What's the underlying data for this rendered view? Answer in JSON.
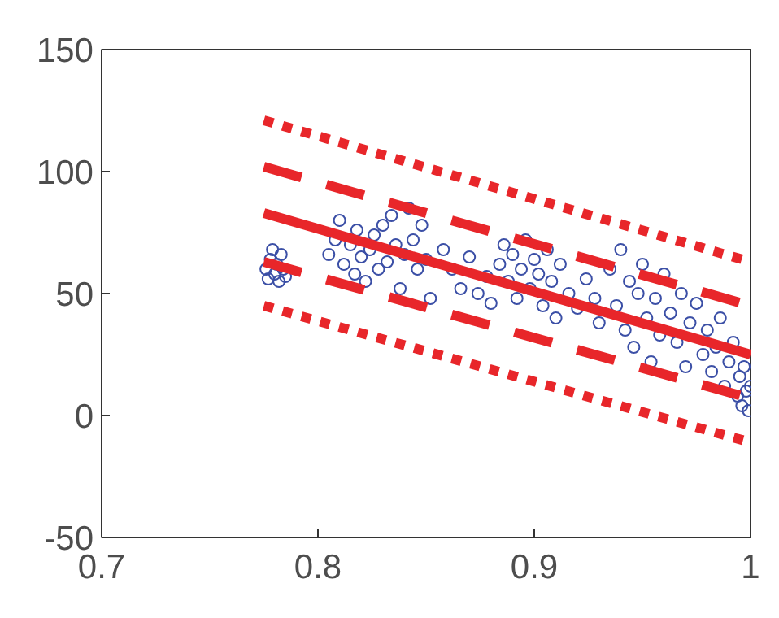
{
  "chart_data": {
    "type": "scatter",
    "xlim": [
      0.7,
      1
    ],
    "ylim": [
      -50,
      150
    ],
    "xticks": [
      0.7,
      0.8,
      0.9,
      1
    ],
    "yticks": [
      -50,
      0,
      50,
      100,
      150
    ],
    "grid": false,
    "series": [
      {
        "marker": "circle",
        "color": "#3b4fa6",
        "x": [
          0.776,
          0.777,
          0.778,
          0.779,
          0.78,
          0.781,
          0.782,
          0.783,
          0.784,
          0.785,
          0.805,
          0.808,
          0.81,
          0.812,
          0.815,
          0.817,
          0.818,
          0.82,
          0.822,
          0.824,
          0.826,
          0.828,
          0.83,
          0.832,
          0.834,
          0.836,
          0.838,
          0.84,
          0.842,
          0.844,
          0.846,
          0.848,
          0.85,
          0.852,
          0.858,
          0.862,
          0.866,
          0.87,
          0.874,
          0.878,
          0.88,
          0.884,
          0.886,
          0.888,
          0.89,
          0.892,
          0.894,
          0.896,
          0.898,
          0.9,
          0.902,
          0.904,
          0.906,
          0.908,
          0.91,
          0.912,
          0.916,
          0.92,
          0.924,
          0.928,
          0.93,
          0.935,
          0.938,
          0.94,
          0.942,
          0.944,
          0.946,
          0.948,
          0.95,
          0.952,
          0.954,
          0.956,
          0.958,
          0.96,
          0.963,
          0.966,
          0.968,
          0.97,
          0.972,
          0.975,
          0.978,
          0.98,
          0.982,
          0.984,
          0.986,
          0.988,
          0.99,
          0.992,
          0.994,
          0.995,
          0.996,
          0.997,
          0.998,
          0.999,
          1.0
        ],
        "values": [
          60,
          56,
          64,
          68,
          58,
          62,
          55,
          66,
          60,
          57,
          66,
          72,
          80,
          62,
          70,
          58,
          76,
          65,
          55,
          68,
          74,
          60,
          78,
          63,
          82,
          70,
          52,
          66,
          85,
          72,
          60,
          78,
          64,
          48,
          68,
          60,
          52,
          65,
          50,
          57,
          46,
          62,
          70,
          55,
          66,
          48,
          60,
          72,
          52,
          64,
          58,
          45,
          68,
          55,
          40,
          62,
          50,
          44,
          56,
          48,
          38,
          60,
          45,
          68,
          35,
          55,
          28,
          50,
          62,
          40,
          22,
          48,
          33,
          58,
          42,
          30,
          50,
          20,
          38,
          46,
          25,
          35,
          18,
          28,
          40,
          12,
          22,
          30,
          8,
          16,
          4,
          20,
          10,
          2,
          12
        ]
      },
      {
        "type": "line",
        "line_style": "solid",
        "color": "#e8262a",
        "x": [
          0.775,
          1
        ],
        "values": [
          83,
          25
        ]
      },
      {
        "type": "line",
        "line_style": "dashed",
        "color": "#e8262a",
        "x": [
          0.775,
          1
        ],
        "values": [
          102,
          45
        ]
      },
      {
        "type": "line",
        "line_style": "dashed",
        "color": "#e8262a",
        "x": [
          0.775,
          1
        ],
        "values": [
          63,
          7
        ]
      },
      {
        "type": "line",
        "line_style": "dotted",
        "color": "#e8262a",
        "x": [
          0.775,
          1
        ],
        "values": [
          121,
          63
        ]
      },
      {
        "type": "line",
        "line_style": "dotted",
        "color": "#e8262a",
        "x": [
          0.775,
          1
        ],
        "values": [
          45,
          -11
        ]
      }
    ]
  }
}
